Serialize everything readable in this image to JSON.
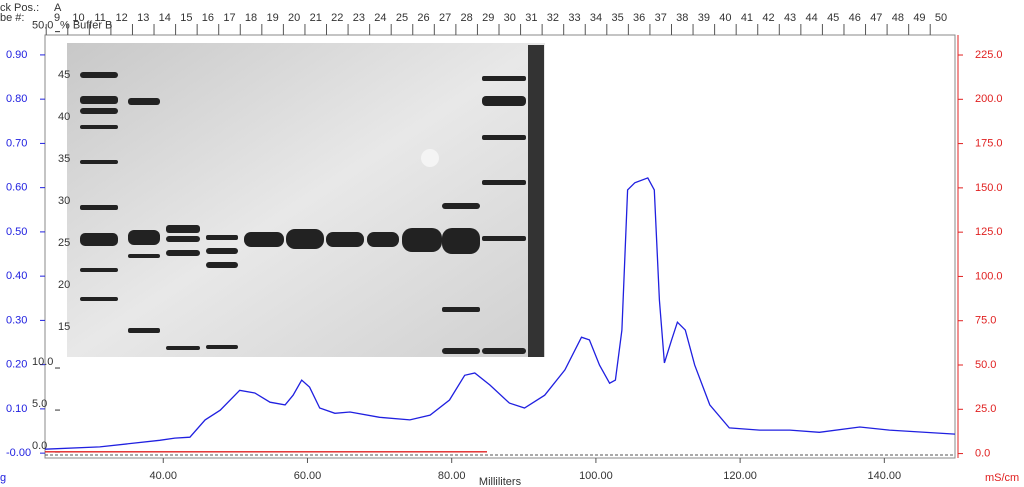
{
  "chart_data": {
    "type": "line",
    "header": {
      "rack_label": "ck Pos.:",
      "rack_value": "A",
      "fraction_label": "be #:"
    },
    "fractions": [
      9,
      10,
      11,
      12,
      13,
      14,
      15,
      16,
      17,
      18,
      19,
      20,
      21,
      22,
      23,
      24,
      25,
      26,
      27,
      28,
      29,
      30,
      31,
      32,
      33,
      34,
      35,
      36,
      37,
      38,
      39,
      40,
      41,
      42,
      43,
      44,
      45,
      46,
      47,
      48,
      49,
      50
    ],
    "xlabel": "Milliliters",
    "ylabel": "g",
    "y2label": "mS/cm",
    "y3label": "% Buffer B",
    "xlim": [
      23.6,
      149.8
    ],
    "ylim": [
      -0.011,
      0.945
    ],
    "y2lim": [
      -2.5,
      236.3
    ],
    "y3lim": [
      -0.7,
      49.6
    ],
    "xticks": [
      {
        "value": 40,
        "label": "40.00"
      },
      {
        "value": 60,
        "label": "60.00"
      },
      {
        "value": 80,
        "label": "80.00"
      },
      {
        "value": 100,
        "label": "100.00"
      },
      {
        "value": 120,
        "label": "120.00"
      },
      {
        "value": 140,
        "label": "140.00"
      }
    ],
    "yticks": [
      {
        "value": 0,
        "label": "-0.00"
      },
      {
        "value": 0.1,
        "label": "0.10"
      },
      {
        "value": 0.2,
        "label": "0.20"
      },
      {
        "value": 0.3,
        "label": "0.30"
      },
      {
        "value": 0.4,
        "label": "0.40"
      },
      {
        "value": 0.5,
        "label": "0.50"
      },
      {
        "value": 0.6,
        "label": "0.60"
      },
      {
        "value": 0.7,
        "label": "0.70"
      },
      {
        "value": 0.8,
        "label": "0.80"
      },
      {
        "value": 0.9,
        "label": "0.90"
      }
    ],
    "y2ticks": [
      {
        "value": 0,
        "label": "0.0"
      },
      {
        "value": 25,
        "label": "25.0"
      },
      {
        "value": 50,
        "label": "50.0"
      },
      {
        "value": 75,
        "label": "75.0"
      },
      {
        "value": 100,
        "label": "100.0"
      },
      {
        "value": 125,
        "label": "125.0"
      },
      {
        "value": 150,
        "label": "150.0"
      },
      {
        "value": 175,
        "label": "175.0"
      },
      {
        "value": 200,
        "label": "200.0"
      },
      {
        "value": 225,
        "label": "225.0"
      }
    ],
    "y3ticks": [
      {
        "value": 0,
        "label": "0.0"
      },
      {
        "value": 5,
        "label": "5.0"
      },
      {
        "value": 10,
        "label": "10.0"
      },
      {
        "value": 50,
        "label": "50.0"
      }
    ],
    "gel_markers": [
      45,
      40,
      35,
      30,
      25,
      20,
      15
    ],
    "series": [
      {
        "color": "#2020e0",
        "x": [
          23.6,
          31.2,
          39.5,
          41.6,
          43.7,
          45.8,
          47.9,
          50.6,
          52.7,
          54.8,
          56.9,
          58.0,
          59.2,
          60.3,
          61.7,
          63.8,
          65.9,
          70.0,
          74.2,
          77.0,
          79.7,
          81.8,
          83.2,
          85.3,
          88.0,
          90.1,
          92.9,
          95.7,
          98.0,
          99.1,
          100.5,
          101.9,
          102.7,
          103.6,
          104.4,
          105.4,
          107.2,
          108.1,
          108.8,
          109.5,
          110.5,
          111.3,
          112.4,
          113.7,
          115.8,
          118.5,
          122.7,
          126.9,
          131.0,
          136.6,
          140.7,
          149.8
        ],
        "values": [
          0.009,
          0.014,
          0.029,
          0.034,
          0.036,
          0.075,
          0.097,
          0.142,
          0.136,
          0.115,
          0.109,
          0.131,
          0.165,
          0.149,
          0.102,
          0.09,
          0.093,
          0.081,
          0.075,
          0.086,
          0.12,
          0.176,
          0.181,
          0.154,
          0.113,
          0.102,
          0.131,
          0.188,
          0.262,
          0.256,
          0.199,
          0.158,
          0.165,
          0.278,
          0.595,
          0.611,
          0.622,
          0.595,
          0.346,
          0.204,
          0.256,
          0.296,
          0.278,
          0.199,
          0.109,
          0.057,
          0.052,
          0.052,
          0.047,
          0.059,
          0.052,
          0.043
        ]
      },
      {
        "color": "#e02020",
        "axis": "y2",
        "x": [
          23.6,
          84.9
        ],
        "values": [
          1,
          1
        ]
      }
    ]
  }
}
